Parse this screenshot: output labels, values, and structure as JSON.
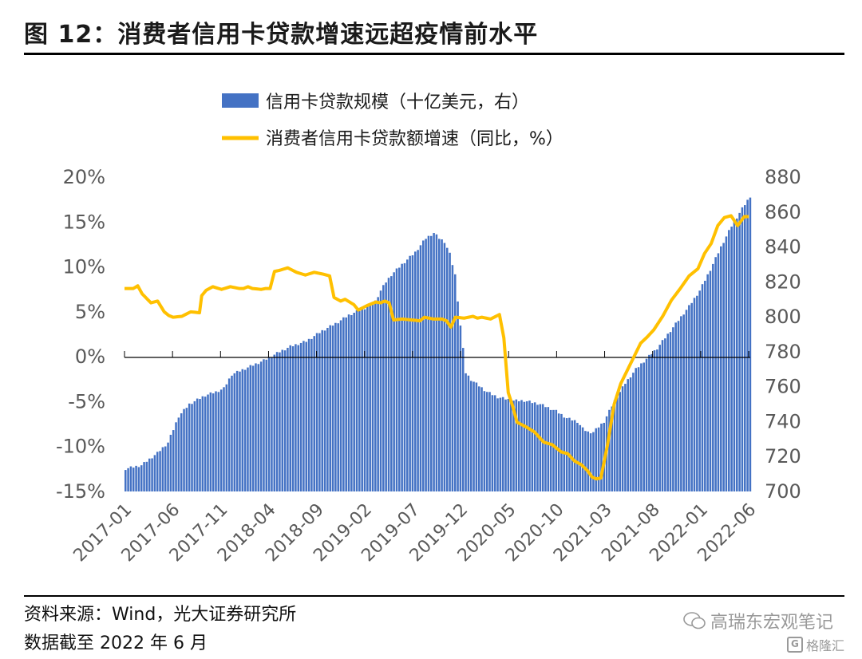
{
  "title": "图 12：消费者信用卡贷款增速远超疫情前水平",
  "source": "资料来源：Wind，光大证券研究所",
  "note": "数据截至 2022 年 6 月",
  "watermark": "高瑞东宏观笔记",
  "watermark_logo": "格隆汇",
  "colors": {
    "bar": "#4472C4",
    "line": "#FFC000",
    "axis": "#000000",
    "tick_text": "#595959"
  },
  "chart_data": {
    "type": "bar",
    "legend": [
      "信用卡贷款规模（十亿美元，右）",
      "消费者信用卡贷款额增速（同比，%）"
    ],
    "x_tick_labels": [
      "2017-01",
      "2017-06",
      "2017-11",
      "2018-04",
      "2018-09",
      "2019-02",
      "2019-07",
      "2019-12",
      "2020-05",
      "2020-10",
      "2021-03",
      "2021-08",
      "2022-01",
      "2022-06"
    ],
    "y_left_ticks": [
      "20%",
      "15%",
      "10%",
      "5%",
      "0%",
      "-5%",
      "-10%",
      "-15%"
    ],
    "y_right_ticks": [
      "880",
      "860",
      "840",
      "820",
      "800",
      "780",
      "760",
      "740",
      "720",
      "700"
    ],
    "y_left_range": [
      -15,
      20
    ],
    "y_right_range": [
      700,
      880
    ],
    "series": [
      {
        "name": "信用卡贷款规模（十亿美元，右）",
        "axis": "right",
        "type": "bar",
        "knots": [
          [
            0,
            713
          ],
          [
            6,
            715
          ],
          [
            12,
            722
          ],
          [
            16,
            728
          ],
          [
            20,
            743
          ],
          [
            24,
            750
          ],
          [
            30,
            755
          ],
          [
            34,
            757
          ],
          [
            37,
            759
          ],
          [
            40,
            767
          ],
          [
            46,
            771
          ],
          [
            52,
            775
          ],
          [
            58,
            780
          ],
          [
            62,
            783
          ],
          [
            68,
            786
          ],
          [
            74,
            792
          ],
          [
            80,
            797
          ],
          [
            84,
            801
          ],
          [
            90,
            805
          ],
          [
            94,
            809
          ],
          [
            96,
            815
          ],
          [
            98,
            820
          ],
          [
            100,
            824
          ],
          [
            104,
            830
          ],
          [
            109,
            837
          ],
          [
            113,
            845
          ],
          [
            116,
            848
          ],
          [
            118,
            845
          ],
          [
            120,
            843
          ],
          [
            122,
            836
          ],
          [
            124,
            824
          ],
          [
            126,
            795
          ],
          [
            128,
            768
          ],
          [
            130,
            764
          ],
          [
            136,
            757
          ],
          [
            140,
            754
          ],
          [
            146,
            752
          ],
          [
            150,
            752
          ],
          [
            156,
            750
          ],
          [
            162,
            746
          ],
          [
            166,
            742
          ],
          [
            170,
            740
          ],
          [
            172,
            736
          ],
          [
            174,
            734
          ],
          [
            176,
            734
          ],
          [
            180,
            740
          ],
          [
            184,
            752
          ],
          [
            188,
            762
          ],
          [
            192,
            770
          ],
          [
            196,
            776
          ],
          [
            200,
            782
          ],
          [
            204,
            790
          ],
          [
            208,
            798
          ],
          [
            212,
            806
          ],
          [
            216,
            815
          ],
          [
            220,
            827
          ],
          [
            224,
            840
          ],
          [
            228,
            852
          ],
          [
            232,
            862
          ],
          [
            235,
            869
          ]
        ]
      },
      {
        "name": "消费者信用卡贷款额增速（同比，%）",
        "axis": "left",
        "type": "line",
        "knots": [
          [
            0,
            7.6
          ],
          [
            4,
            7.6
          ],
          [
            6,
            7.9
          ],
          [
            8,
            7.0
          ],
          [
            10,
            6.5
          ],
          [
            12,
            6.0
          ],
          [
            15,
            6.2
          ],
          [
            18,
            5.0
          ],
          [
            20,
            4.6
          ],
          [
            22,
            4.4
          ],
          [
            26,
            4.5
          ],
          [
            30,
            5.0
          ],
          [
            34,
            4.9
          ],
          [
            35,
            6.8
          ],
          [
            37,
            7.4
          ],
          [
            40,
            7.8
          ],
          [
            44,
            7.5
          ],
          [
            48,
            7.8
          ],
          [
            52,
            7.6
          ],
          [
            54,
            7.6
          ],
          [
            56,
            7.8
          ],
          [
            58,
            7.6
          ],
          [
            62,
            7.5
          ],
          [
            64,
            7.6
          ],
          [
            66,
            7.6
          ],
          [
            68,
            9.5
          ],
          [
            70,
            9.6
          ],
          [
            74,
            9.9
          ],
          [
            78,
            9.4
          ],
          [
            82,
            9.1
          ],
          [
            86,
            9.4
          ],
          [
            90,
            9.2
          ],
          [
            93,
            9.0
          ],
          [
            95,
            6.6
          ],
          [
            98,
            6.2
          ],
          [
            100,
            6.4
          ],
          [
            104,
            5.8
          ],
          [
            106,
            5.2
          ],
          [
            110,
            5.7
          ],
          [
            114,
            6.1
          ],
          [
            116,
            6.0
          ],
          [
            118,
            6.2
          ],
          [
            120,
            6.0
          ],
          [
            122,
            4.1
          ],
          [
            126,
            4.2
          ],
          [
            130,
            4.1
          ],
          [
            134,
            4.0
          ],
          [
            136,
            4.4
          ],
          [
            140,
            4.2
          ],
          [
            144,
            4.2
          ],
          [
            146,
            4.0
          ],
          [
            148,
            3.3
          ],
          [
            150,
            4.4
          ],
          [
            154,
            4.3
          ],
          [
            158,
            4.5
          ],
          [
            160,
            4.3
          ],
          [
            162,
            4.4
          ],
          [
            166,
            4.2
          ],
          [
            170,
            4.7
          ],
          [
            172,
            2.1
          ],
          [
            174,
            -4.0
          ],
          [
            176,
            -5.5
          ],
          [
            178,
            -7.3
          ],
          [
            182,
            -7.8
          ],
          [
            186,
            -8.4
          ],
          [
            190,
            -9.5
          ],
          [
            194,
            -9.8
          ],
          [
            198,
            -10.6
          ],
          [
            201,
            -10.8
          ],
          [
            204,
            -11.6
          ],
          [
            207,
            -12.0
          ],
          [
            210,
            -12.7
          ],
          [
            212,
            -13.4
          ],
          [
            214,
            -13.6
          ],
          [
            216,
            -13.5
          ],
          [
            219,
            -9.8
          ],
          [
            222,
            -5.3
          ],
          [
            225,
            -3.0
          ],
          [
            228,
            -1.5
          ],
          [
            231,
            0.0
          ],
          [
            234,
            1.5
          ],
          [
            237,
            2.2
          ],
          [
            240,
            3.0
          ],
          [
            244,
            4.5
          ],
          [
            248,
            6.3
          ],
          [
            252,
            7.6
          ],
          [
            256,
            9.0
          ],
          [
            260,
            9.8
          ],
          [
            263,
            11.5
          ],
          [
            266,
            12.6
          ],
          [
            269,
            14.6
          ],
          [
            272,
            15.5
          ],
          [
            275,
            15.7
          ],
          [
            278,
            14.6
          ],
          [
            281,
            15.6
          ],
          [
            283,
            15.6
          ]
        ]
      }
    ],
    "n_points": 284,
    "bar_index_scale": "bar knots use 0-235 index; line knots use 0-283 index; both span 2017-01 to 2022-06"
  }
}
